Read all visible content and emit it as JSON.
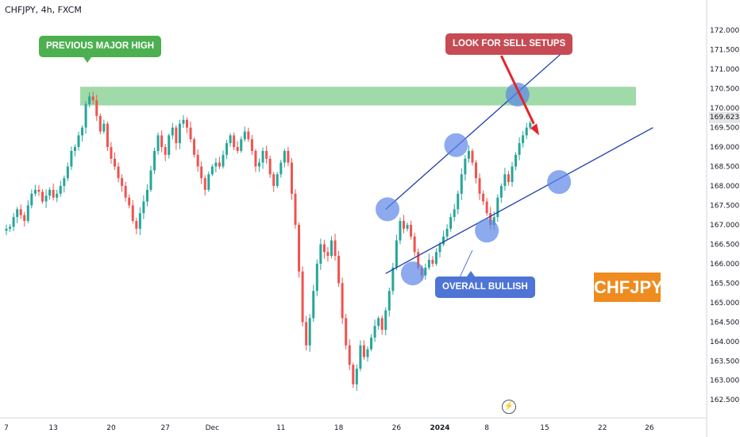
{
  "header": {
    "symbol_text": "CHFJPY, 4h, FXCM"
  },
  "annotations": {
    "previous_high": "PREVIOUS MAJOR HIGH",
    "sell_setups": "LOOK FOR SELL SETUPS",
    "overall_bullish": "OVERALL BULLISH",
    "brand": "CHFJPY"
  },
  "colors": {
    "up": "#26a69a",
    "down": "#ef5350",
    "resistance_zone": "#8fd49a",
    "trend_line": "#1e3fa8",
    "circle": "#5b86e5",
    "arrow": "#e5242b",
    "tag_green": "#4caf50",
    "tag_red": "#c64b54",
    "tag_blue": "#4e74d6",
    "brand_bg": "#ef8c1f"
  },
  "chart_data": {
    "type": "candlestick",
    "symbol": "CHFJPY",
    "timeframe": "4h",
    "source": "FXCM",
    "last_price": "169.623",
    "ylim": [
      162.3,
      172.25
    ],
    "xlim": [
      -1,
      180
    ],
    "y_ticks": [
      "172.000",
      "171.500",
      "171.000",
      "170.500",
      "170.000",
      "169.500",
      "169.000",
      "168.500",
      "168.000",
      "167.500",
      "167.000",
      "166.500",
      "166.000",
      "165.500",
      "165.000",
      "164.500",
      "164.000",
      "163.500",
      "163.000",
      "162.500"
    ],
    "x_ticks": [
      {
        "label": "7",
        "i": 0
      },
      {
        "label": "13",
        "i": 13
      },
      {
        "label": "20",
        "i": 29
      },
      {
        "label": "27",
        "i": 44
      },
      {
        "label": "Dec",
        "i": 57
      },
      {
        "label": "11",
        "i": 76
      },
      {
        "label": "18",
        "i": 92
      },
      {
        "label": "26",
        "i": 108
      },
      {
        "label": "2024",
        "i": 120
      },
      {
        "label": "8",
        "i": 133
      },
      {
        "label": "15",
        "i": 149
      },
      {
        "label": "22",
        "i": 165
      },
      {
        "label": "26",
        "i": 178
      }
    ],
    "closes": [
      166.9,
      166.95,
      167.2,
      167.4,
      167.25,
      167.1,
      167.5,
      167.8,
      167.9,
      167.85,
      167.6,
      167.75,
      167.9,
      167.7,
      167.8,
      168.0,
      168.2,
      168.5,
      168.9,
      169.0,
      169.3,
      169.5,
      170.1,
      170.3,
      170.2,
      169.8,
      169.4,
      169.6,
      169.0,
      168.7,
      168.5,
      168.2,
      168.0,
      167.7,
      167.5,
      167.1,
      166.9,
      167.3,
      167.6,
      167.9,
      168.4,
      168.9,
      169.3,
      169.0,
      168.8,
      169.3,
      169.5,
      169.1,
      169.6,
      169.7,
      169.5,
      169.2,
      168.8,
      168.5,
      168.2,
      167.9,
      168.3,
      168.5,
      168.6,
      168.5,
      168.8,
      169.1,
      169.3,
      169.0,
      168.9,
      169.2,
      169.4,
      169.2,
      168.9,
      168.5,
      168.6,
      168.9,
      168.7,
      168.3,
      168.0,
      168.3,
      168.6,
      168.9,
      168.6,
      167.8,
      167.0,
      165.8,
      164.5,
      163.9,
      164.6,
      165.3,
      166.0,
      166.5,
      166.3,
      166.2,
      166.6,
      166.2,
      165.5,
      164.6,
      163.9,
      163.4,
      162.9,
      163.3,
      163.9,
      163.6,
      163.8,
      164.1,
      164.4,
      164.6,
      164.3,
      164.8,
      165.3,
      165.9,
      166.6,
      167.1,
      166.9,
      167.0,
      166.7,
      166.3,
      165.9,
      165.7,
      165.9,
      166.1,
      166.0,
      166.3,
      166.5,
      166.7,
      166.9,
      167.2,
      167.4,
      167.8,
      168.3,
      168.7,
      168.9,
      168.6,
      168.2,
      167.8,
      167.6,
      167.3,
      167.0,
      167.2,
      167.7,
      168.0,
      168.3,
      168.1,
      168.5,
      168.8,
      169.1,
      169.3,
      169.5,
      169.62
    ]
  }
}
